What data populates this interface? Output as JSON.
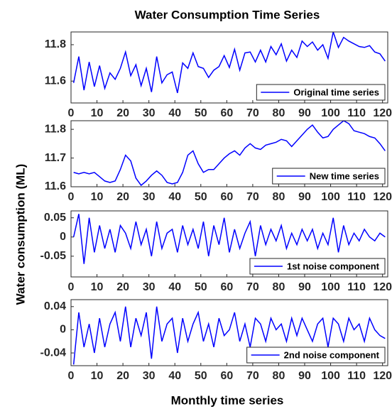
{
  "figure": {
    "title": "Water Consumption Time Series",
    "ylabel": "Water consumption (ML)",
    "xlabel": "Monthly time series"
  },
  "chart_data": [
    {
      "type": "line",
      "xlim": [
        0,
        122
      ],
      "xticks": [
        0,
        10,
        20,
        30,
        40,
        50,
        60,
        70,
        80,
        90,
        100,
        110,
        120
      ],
      "ylim": [
        11.48,
        11.87
      ],
      "yticks": [
        11.6,
        11.8
      ],
      "legend": "lower right",
      "x": [
        1,
        3,
        5,
        7,
        9,
        11,
        13,
        15,
        17,
        19,
        21,
        23,
        25,
        27,
        29,
        31,
        33,
        35,
        37,
        39,
        41,
        43,
        45,
        47,
        49,
        51,
        53,
        55,
        57,
        59,
        61,
        63,
        65,
        67,
        69,
        71,
        73,
        75,
        77,
        79,
        81,
        83,
        85,
        87,
        89,
        91,
        93,
        95,
        97,
        99,
        101,
        103,
        105,
        107,
        109,
        111,
        113,
        115,
        117,
        119,
        121
      ],
      "series": [
        {
          "name": "Original time series",
          "color": "#0000ff",
          "values": [
            11.59,
            11.735,
            11.55,
            11.705,
            11.57,
            11.685,
            11.56,
            11.645,
            11.61,
            11.67,
            11.76,
            11.63,
            11.69,
            11.575,
            11.67,
            11.54,
            11.735,
            11.59,
            11.635,
            11.65,
            11.535,
            11.7,
            11.67,
            11.755,
            11.68,
            11.67,
            11.62,
            11.66,
            11.68,
            11.74,
            11.675,
            11.775,
            11.66,
            11.755,
            11.76,
            11.705,
            11.77,
            11.705,
            11.79,
            11.745,
            11.805,
            11.71,
            11.77,
            11.73,
            11.82,
            11.79,
            11.815,
            11.77,
            11.8,
            11.725,
            11.87,
            11.785,
            11.84,
            11.82,
            11.805,
            11.79,
            11.785,
            11.795,
            11.76,
            11.75,
            11.71
          ]
        }
      ]
    },
    {
      "type": "line",
      "xlim": [
        0,
        122
      ],
      "xticks": [
        0,
        10,
        20,
        30,
        40,
        50,
        60,
        70,
        80,
        90,
        100,
        110,
        120
      ],
      "ylim": [
        11.6,
        11.83
      ],
      "yticks": [
        11.6,
        11.7,
        11.8
      ],
      "legend": "lower right",
      "x": [
        1,
        3,
        5,
        7,
        9,
        11,
        13,
        15,
        17,
        19,
        21,
        23,
        25,
        27,
        29,
        31,
        33,
        35,
        37,
        39,
        41,
        43,
        45,
        47,
        49,
        51,
        53,
        55,
        57,
        59,
        61,
        63,
        65,
        67,
        69,
        71,
        73,
        75,
        77,
        79,
        81,
        83,
        85,
        87,
        89,
        91,
        93,
        95,
        97,
        99,
        101,
        103,
        105,
        107,
        109,
        111,
        113,
        115,
        117,
        119,
        121
      ],
      "series": [
        {
          "name": "New time series",
          "color": "#0000ff",
          "values": [
            11.65,
            11.645,
            11.65,
            11.645,
            11.65,
            11.635,
            11.62,
            11.615,
            11.62,
            11.66,
            11.71,
            11.69,
            11.63,
            11.605,
            11.62,
            11.64,
            11.655,
            11.64,
            11.615,
            11.61,
            11.615,
            11.65,
            11.71,
            11.725,
            11.68,
            11.65,
            11.66,
            11.66,
            11.68,
            11.7,
            11.715,
            11.725,
            11.71,
            11.735,
            11.75,
            11.735,
            11.73,
            11.745,
            11.75,
            11.755,
            11.765,
            11.76,
            11.74,
            11.76,
            11.78,
            11.8,
            11.815,
            11.79,
            11.77,
            11.775,
            11.8,
            11.815,
            11.83,
            11.82,
            11.795,
            11.79,
            11.785,
            11.775,
            11.77,
            11.75,
            11.725
          ]
        }
      ]
    },
    {
      "type": "line",
      "xlim": [
        0,
        122
      ],
      "xticks": [
        0,
        10,
        20,
        30,
        40,
        50,
        60,
        70,
        80,
        90,
        100,
        110,
        120
      ],
      "ylim": [
        -0.104,
        0.068
      ],
      "yticks": [
        -0.05,
        0,
        0.05
      ],
      "legend": "lower right",
      "x": [
        1,
        3,
        5,
        7,
        9,
        11,
        13,
        15,
        17,
        19,
        21,
        23,
        25,
        27,
        29,
        31,
        33,
        35,
        37,
        39,
        41,
        43,
        45,
        47,
        49,
        51,
        53,
        55,
        57,
        59,
        61,
        63,
        65,
        67,
        69,
        71,
        73,
        75,
        77,
        79,
        81,
        83,
        85,
        87,
        89,
        91,
        93,
        95,
        97,
        99,
        101,
        103,
        105,
        107,
        109,
        111,
        113,
        115,
        117,
        119,
        121
      ],
      "series": [
        {
          "name": "1st noise component",
          "color": "#0000ff",
          "values": [
            0.0,
            0.06,
            -0.07,
            0.05,
            -0.04,
            0.03,
            -0.03,
            0.02,
            -0.04,
            0.03,
            0.01,
            -0.03,
            0.04,
            -0.02,
            0.02,
            -0.05,
            0.04,
            -0.03,
            0.01,
            0.02,
            -0.04,
            0.03,
            -0.02,
            0.02,
            -0.03,
            0.04,
            -0.05,
            0.03,
            -0.02,
            0.05,
            -0.04,
            0.02,
            -0.03,
            0.01,
            0.04,
            -0.05,
            0.03,
            -0.02,
            0.02,
            -0.01,
            0.03,
            -0.03,
            0.01,
            -0.02,
            0.02,
            -0.01,
            0.02,
            -0.03,
            0.01,
            -0.02,
            0.05,
            -0.04,
            0.03,
            -0.02,
            0.01,
            -0.01,
            0.02,
            0.0,
            -0.01,
            0.01,
            0.0
          ]
        }
      ]
    },
    {
      "type": "line",
      "xlim": [
        0,
        122
      ],
      "xticks": [
        0,
        10,
        20,
        30,
        40,
        50,
        60,
        70,
        80,
        90,
        100,
        110,
        120
      ],
      "ylim": [
        -0.062,
        0.052
      ],
      "yticks": [
        -0.04,
        0,
        0.04
      ],
      "legend": "lower right",
      "x": [
        1,
        3,
        5,
        7,
        9,
        11,
        13,
        15,
        17,
        19,
        21,
        23,
        25,
        27,
        29,
        31,
        33,
        35,
        37,
        39,
        41,
        43,
        45,
        47,
        49,
        51,
        53,
        55,
        57,
        59,
        61,
        63,
        65,
        67,
        69,
        71,
        73,
        75,
        77,
        79,
        81,
        83,
        85,
        87,
        89,
        91,
        93,
        95,
        97,
        99,
        101,
        103,
        105,
        107,
        109,
        111,
        113,
        115,
        117,
        119,
        121
      ],
      "series": [
        {
          "name": "2nd noise component",
          "color": "#0000ff",
          "values": [
            -0.06,
            0.03,
            -0.03,
            0.01,
            -0.04,
            0.02,
            -0.03,
            0.01,
            0.03,
            -0.02,
            0.04,
            -0.03,
            0.02,
            -0.01,
            0.03,
            -0.05,
            0.04,
            -0.02,
            0.01,
            0.02,
            -0.04,
            0.02,
            -0.02,
            0.01,
            0.03,
            -0.02,
            0.01,
            -0.03,
            0.02,
            -0.01,
            0.0,
            0.03,
            -0.02,
            0.01,
            -0.03,
            0.02,
            0.01,
            -0.02,
            0.02,
            0.0,
            0.01,
            -0.02,
            0.02,
            -0.01,
            0.02,
            0.0,
            -0.02,
            0.01,
            0.02,
            -0.03,
            0.02,
            0.01,
            -0.02,
            0.02,
            0.0,
            0.01,
            -0.02,
            0.02,
            0.0,
            -0.01,
            -0.015
          ]
        }
      ]
    }
  ]
}
